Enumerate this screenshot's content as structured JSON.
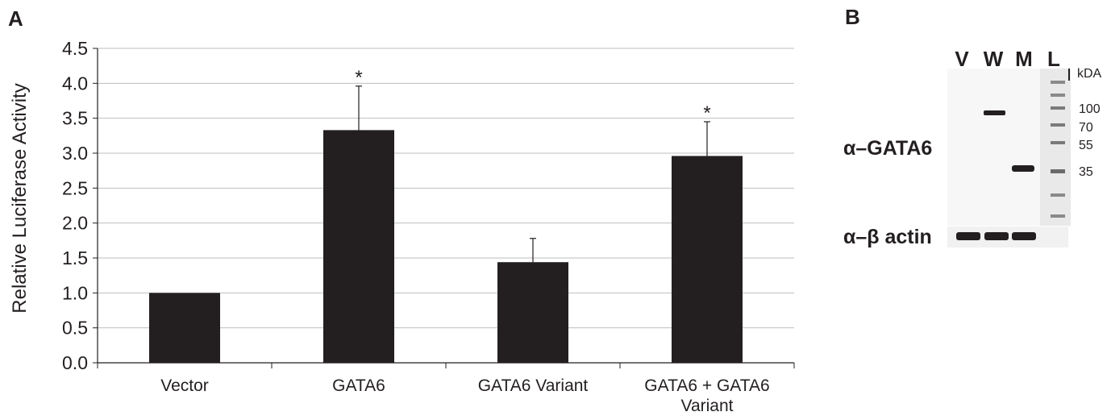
{
  "panels": {
    "a": "A",
    "b": "B"
  },
  "chart_data": {
    "type": "bar",
    "ylabel": "Relative Luciferase Activity",
    "xlabel": "",
    "ylim": [
      0,
      4.5
    ],
    "yticks": [
      "0.0",
      "0.5",
      "1.0",
      "1.5",
      "2.0",
      "2.5",
      "3.0",
      "3.5",
      "4.0",
      "4.5"
    ],
    "grid": true,
    "categories": [
      [
        "Vector"
      ],
      [
        "GATA6"
      ],
      [
        "GATA6 Variant"
      ],
      [
        "GATA6 + GATA6",
        "Variant"
      ]
    ],
    "values": [
      1.0,
      3.33,
      1.44,
      2.96
    ],
    "errors": [
      0.0,
      0.63,
      0.34,
      0.49
    ],
    "annotations": [
      "",
      "*",
      "",
      "*"
    ],
    "colors": {
      "bar": "#231f20",
      "grid": "#bcbec0",
      "text": "#231f20"
    }
  },
  "blot": {
    "lanes": [
      "V",
      "W",
      "M",
      "L"
    ],
    "unit": "kDA",
    "markers": [
      "100",
      "70",
      "55",
      "35"
    ],
    "antibody_top": "α–GATA6",
    "antibody_bottom_prefix": "α–β",
    "antibody_bottom_suffix": " actin"
  }
}
